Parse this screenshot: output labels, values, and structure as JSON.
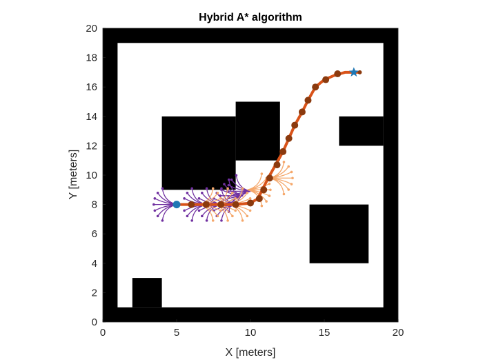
{
  "chart_data": {
    "type": "scatter",
    "title": "Hybrid A* algorithm",
    "xlabel": "X [meters]",
    "ylabel": "Y [meters]",
    "xlim": [
      0,
      20
    ],
    "ylim": [
      0,
      20
    ],
    "x_ticks": [
      0,
      5,
      10,
      15,
      20
    ],
    "y_ticks": [
      0,
      2,
      4,
      6,
      8,
      10,
      12,
      14,
      16,
      18,
      20
    ],
    "grid": false,
    "legend": "none",
    "colors": {
      "obstacle": "#000000",
      "free_space": "#ffffff",
      "forward_tree": "#7030a0",
      "reverse_tree": "#f5a76a",
      "path": "#d95319",
      "path_node": "#8b3a0e",
      "start_marker": "#1f77b4",
      "goal_marker": "#1f77b4"
    },
    "obstacles": [
      {
        "name": "border-bottom",
        "x0": 0,
        "y0": 0,
        "x1": 20,
        "y1": 1
      },
      {
        "name": "border-top",
        "x0": 0,
        "y0": 19,
        "x1": 20,
        "y1": 20
      },
      {
        "name": "border-left",
        "x0": 0,
        "y0": 0,
        "x1": 1,
        "y1": 20
      },
      {
        "name": "border-right",
        "x0": 19,
        "y0": 0,
        "x1": 20,
        "y1": 20
      },
      {
        "name": "block-bottom-left",
        "x0": 2,
        "y0": 1,
        "x1": 4,
        "y1": 3
      },
      {
        "name": "block-center-left",
        "x0": 4,
        "y0": 9,
        "x1": 9,
        "y1": 14
      },
      {
        "name": "block-center-top",
        "x0": 9,
        "y0": 11,
        "x1": 12,
        "y1": 15
      },
      {
        "name": "block-right-upper",
        "x0": 16,
        "y0": 12,
        "x1": 19,
        "y1": 14
      },
      {
        "name": "block-right-lower",
        "x0": 14,
        "y0": 4,
        "x1": 18,
        "y1": 8
      }
    ],
    "start": {
      "x": 5,
      "y": 8
    },
    "goal": {
      "x": 17,
      "y": 17
    },
    "path": [
      [
        5,
        8
      ],
      [
        6,
        8
      ],
      [
        7,
        8
      ],
      [
        8,
        8
      ],
      [
        9,
        8
      ],
      [
        10,
        8.1
      ],
      [
        10.5,
        8.4
      ],
      [
        10.8,
        9
      ],
      [
        11.2,
        9.8
      ],
      [
        11.7,
        10.7
      ],
      [
        12.2,
        11.6
      ],
      [
        12.6,
        12.5
      ],
      [
        13,
        13.4
      ],
      [
        13.5,
        14.3
      ],
      [
        13.9,
        15.1
      ],
      [
        14.4,
        16
      ],
      [
        15,
        16.5
      ],
      [
        15.7,
        16.8
      ],
      [
        16.4,
        17
      ],
      [
        17,
        17
      ],
      [
        17.5,
        17
      ]
    ],
    "path_nodes": [
      [
        6,
        8
      ],
      [
        7,
        8
      ],
      [
        8,
        8
      ],
      [
        9,
        8
      ],
      [
        10,
        8.1
      ],
      [
        10.6,
        8.4
      ],
      [
        10.9,
        9
      ],
      [
        11.3,
        9.8
      ],
      [
        11.8,
        10.7
      ],
      [
        12.2,
        11.6
      ],
      [
        12.6,
        12.5
      ],
      [
        13,
        13.4
      ],
      [
        13.5,
        14.3
      ],
      [
        13.9,
        15.1
      ],
      [
        14.4,
        16
      ],
      [
        15.1,
        16.5
      ],
      [
        15.9,
        16.9
      ],
      [
        17.4,
        17
      ]
    ],
    "forward_tree_nodes": [
      [
        5,
        8
      ],
      [
        7,
        8
      ],
      [
        8,
        8
      ],
      [
        9,
        8
      ],
      [
        9.5,
        8.6
      ],
      [
        10,
        8.9
      ]
    ],
    "reverse_tree_nodes": [
      [
        6.5,
        8
      ],
      [
        7.5,
        8
      ],
      [
        8.5,
        8
      ],
      [
        9.8,
        9
      ],
      [
        11.3,
        9.8
      ]
    ]
  }
}
